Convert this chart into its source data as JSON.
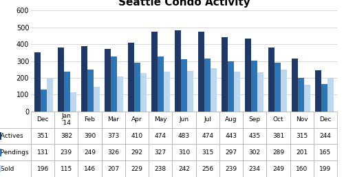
{
  "title": "Seattle Condo Activity",
  "categories": [
    "Dec",
    "Jan\n'14",
    "Feb",
    "Mar",
    "Apr",
    "May",
    "Jun",
    "Jul",
    "Aug",
    "Sep",
    "Oct",
    "Nov",
    "Dec"
  ],
  "actives": [
    351,
    382,
    390,
    373,
    410,
    474,
    483,
    474,
    443,
    435,
    381,
    315,
    244
  ],
  "pendings": [
    131,
    239,
    249,
    326,
    292,
    327,
    310,
    315,
    297,
    302,
    289,
    201,
    165
  ],
  "sold": [
    196,
    115,
    146,
    207,
    229,
    238,
    242,
    256,
    239,
    234,
    249,
    160,
    199
  ],
  "color_actives": "#1F3864",
  "color_pendings": "#2E75B6",
  "color_sold": "#BDD7EE",
  "ylim": [
    0,
    600
  ],
  "yticks": [
    0,
    100,
    200,
    300,
    400,
    500,
    600
  ],
  "legend_labels": [
    "Actives",
    "Pendings",
    "Sold"
  ],
  "background_color": "#FFFFFF",
  "grid_color": "#D0D0D0",
  "title_fontsize": 11,
  "tick_fontsize": 7,
  "table_fontsize": 6.5,
  "bar_width": 0.27
}
